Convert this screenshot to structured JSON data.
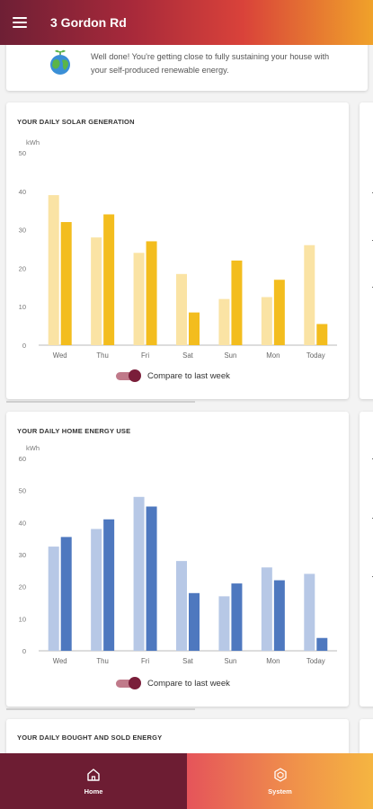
{
  "header": {
    "title": "3 Gordon Rd",
    "menu_icon": "menu-icon"
  },
  "banner": {
    "message": "Well done! You're getting close to fully sustaining your house with your self-produced renewable energy.",
    "icon": "globe-plant-icon"
  },
  "solar_card": {
    "title": "YOUR DAILY SOLAR GENERATION",
    "toggle_label": "Compare to last week"
  },
  "home_card": {
    "title": "YOUR DAILY HOME ENERGY USE",
    "toggle_label": "Compare to last week"
  },
  "bought_card": {
    "title": "YOUR DAILY BOUGHT AND SOLD ENERGY"
  },
  "bottom_nav": {
    "home": {
      "label": "Home",
      "icon": "house-icon"
    },
    "system": {
      "label": "System",
      "icon": "hexagon-icon"
    }
  },
  "colors": {
    "solar_last": "#fae3a4",
    "solar_this": "#f3bd1e",
    "home_last": "#b7c8e6",
    "home_this": "#4e78bf",
    "accent": "#7a1e3a"
  },
  "chart_data": [
    {
      "type": "bar",
      "title": "YOUR DAILY SOLAR GENERATION",
      "ylabel": "kWh",
      "categories": [
        "Wed",
        "Thu",
        "Fri",
        "Sat",
        "Sun",
        "Mon",
        "Today"
      ],
      "ylim": [
        0,
        50
      ],
      "yticks": [
        0,
        10,
        20,
        30,
        40,
        50
      ],
      "grid": false,
      "series": [
        {
          "values": [
            39,
            28,
            24,
            18.5,
            12,
            12.5,
            26
          ]
        },
        {
          "values": [
            32,
            34,
            27,
            8.5,
            22,
            17,
            5.5
          ]
        }
      ]
    },
    {
      "type": "bar",
      "title": "YOUR DAILY HOME ENERGY USE",
      "ylabel": "kWh",
      "categories": [
        "Wed",
        "Thu",
        "Fri",
        "Sat",
        "Sun",
        "Mon",
        "Today"
      ],
      "ylim": [
        0,
        60
      ],
      "yticks": [
        0,
        10,
        20,
        30,
        40,
        50,
        60
      ],
      "grid": false,
      "series": [
        {
          "values": [
            32.5,
            38,
            48,
            28,
            17,
            26,
            24
          ]
        },
        {
          "values": [
            35.5,
            41,
            45,
            18,
            21,
            22,
            4
          ]
        }
      ]
    }
  ]
}
